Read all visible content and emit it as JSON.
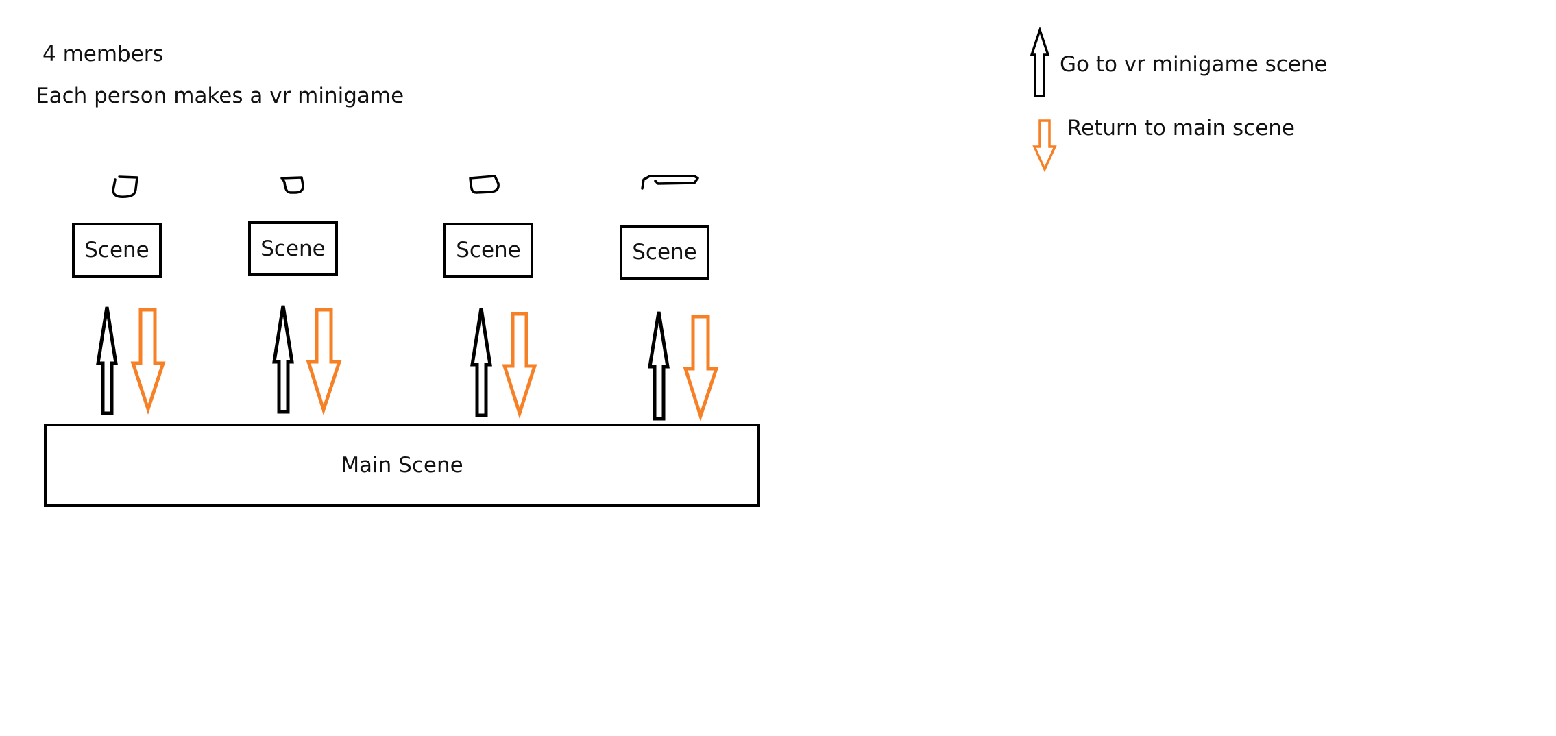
{
  "notes": {
    "members": "4 members",
    "task": "Each person makes a vr minigame"
  },
  "legend": {
    "go_label": "Go to vr minigame scene",
    "return_label": "Return to main scene"
  },
  "scenes": [
    {
      "label": "Scene"
    },
    {
      "label": "Scene"
    },
    {
      "label": "Scene"
    },
    {
      "label": "Scene"
    }
  ],
  "main_scene": {
    "label": "Main Scene"
  },
  "colors": {
    "go_arrow": "#000000",
    "return_arrow": "#f58025",
    "box_border": "#000000"
  }
}
